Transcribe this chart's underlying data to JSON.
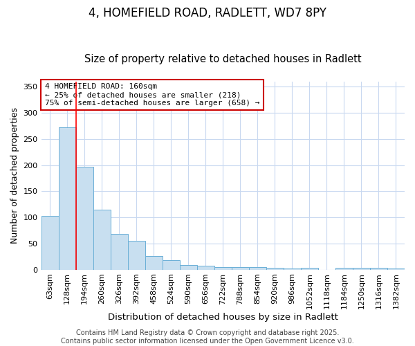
{
  "title1": "4, HOMEFIELD ROAD, RADLETT, WD7 8PY",
  "title2": "Size of property relative to detached houses in Radlett",
  "xlabel": "Distribution of detached houses by size in Radlett",
  "ylabel": "Number of detached properties",
  "categories": [
    "63sqm",
    "128sqm",
    "194sqm",
    "260sqm",
    "326sqm",
    "392sqm",
    "458sqm",
    "524sqm",
    "590sqm",
    "656sqm",
    "722sqm",
    "788sqm",
    "854sqm",
    "920sqm",
    "986sqm",
    "1052sqm",
    "1118sqm",
    "1184sqm",
    "1250sqm",
    "1316sqm",
    "1382sqm"
  ],
  "values": [
    103,
    272,
    197,
    115,
    68,
    55,
    26,
    18,
    9,
    8,
    5,
    5,
    5,
    3,
    2,
    3,
    0,
    3,
    3,
    3,
    2
  ],
  "bar_color": "#c8dff0",
  "bar_edge_color": "#6aafd6",
  "red_line_x": 1.5,
  "annotation_text": "4 HOMEFIELD ROAD: 160sqm\n← 25% of detached houses are smaller (218)\n75% of semi-detached houses are larger (658) →",
  "annotation_box_color": "#ffffff",
  "annotation_box_edge": "#cc0000",
  "footer": "Contains HM Land Registry data © Crown copyright and database right 2025.\nContains public sector information licensed under the Open Government Licence v3.0.",
  "background_color": "#ffffff",
  "grid_color": "#c8d8f0",
  "ylim": [
    0,
    360
  ],
  "yticks": [
    0,
    50,
    100,
    150,
    200,
    250,
    300,
    350
  ],
  "title1_fontsize": 12,
  "title2_fontsize": 10.5,
  "xlabel_fontsize": 9.5,
  "ylabel_fontsize": 9,
  "tick_fontsize": 8,
  "footer_fontsize": 7,
  "annotation_fontsize": 8
}
